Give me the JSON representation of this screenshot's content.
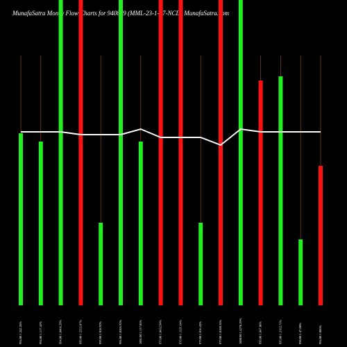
{
  "chart_data": {
    "type": "bar",
    "title": "MunafaSatra  Money Flow Charts for 940879 (MML-23-1-27-NCD) MunafaSatra.com",
    "categories": [
      "994.00 1.242.26%",
      "994.00 1.117.42%",
      "994.00 1.0466.29%",
      "999.00 1.2252.87%",
      "999.00 1.018.92%",
      "996.00 1.0305.92%",
      "1001.00 1.117.05%",
      "979.00 1.0432.94%",
      "979.00 1.1321.64%",
      "979.00 1.016.43%",
      "979.00 1.0188.24%",
      "1000.00 1.4278.29%",
      "999.00 1.047.86%",
      "995.00 1.2162.71%",
      "998.00 1.47.08%",
      "994.00 1.086%"
    ],
    "values": [
      248,
      236,
      440,
      440,
      119,
      440,
      236,
      440,
      440,
      119,
      440,
      440,
      324,
      330,
      95,
      201
    ],
    "colors": [
      "#22ee22",
      "#22ee22",
      "#22ee22",
      "#ff1111",
      "#22ee22",
      "#22ee22",
      "#22ee22",
      "#ff1111",
      "#ff1111",
      "#22ee22",
      "#ff1111",
      "#22ee22",
      "#ff1111",
      "#22ee22",
      "#22ee22",
      "#ff1111"
    ],
    "line": {
      "color": "#ffffff",
      "values": [
        250,
        250,
        250,
        246,
        246,
        246,
        254,
        242,
        242,
        242,
        231,
        254,
        250,
        250,
        250,
        250
      ]
    },
    "ylim": [
      0,
      440
    ]
  }
}
